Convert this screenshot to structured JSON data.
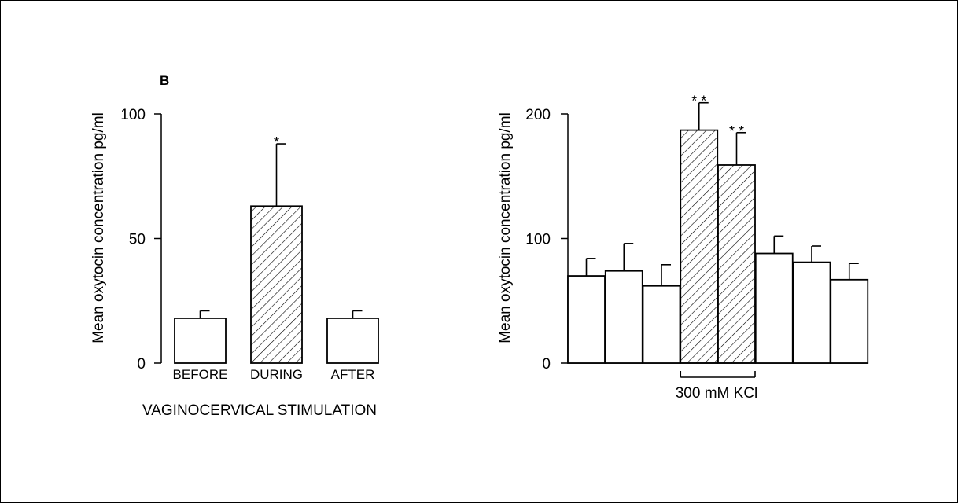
{
  "chart_data": [
    {
      "type": "bar",
      "panel_label": "B",
      "categories": [
        "BEFORE",
        "DURING",
        "AFTER"
      ],
      "values": [
        18,
        63,
        18
      ],
      "errors": [
        3,
        25,
        3
      ],
      "hatched": [
        false,
        true,
        false
      ],
      "significance": [
        "",
        "*",
        ""
      ],
      "ylabel": "Mean oxytocin concentration pg/ml",
      "xlabel": "VAGINOCERVICAL STIMULATION",
      "ylim": [
        0,
        100
      ],
      "yticks": [
        0,
        50,
        100
      ]
    },
    {
      "type": "bar",
      "values": [
        70,
        74,
        62,
        187,
        159,
        88,
        81,
        67
      ],
      "errors": [
        14,
        22,
        17,
        22,
        26,
        14,
        13,
        13
      ],
      "hatched": [
        false,
        false,
        false,
        true,
        true,
        false,
        false,
        false
      ],
      "significance": [
        "",
        "",
        "",
        "* *",
        "* *",
        "",
        "",
        ""
      ],
      "ylabel": "Mean oxytocin concentration pg/ml",
      "bracket_label": "300 mM KCl",
      "ylim": [
        0,
        200
      ],
      "yticks": [
        0,
        100,
        200
      ]
    }
  ]
}
